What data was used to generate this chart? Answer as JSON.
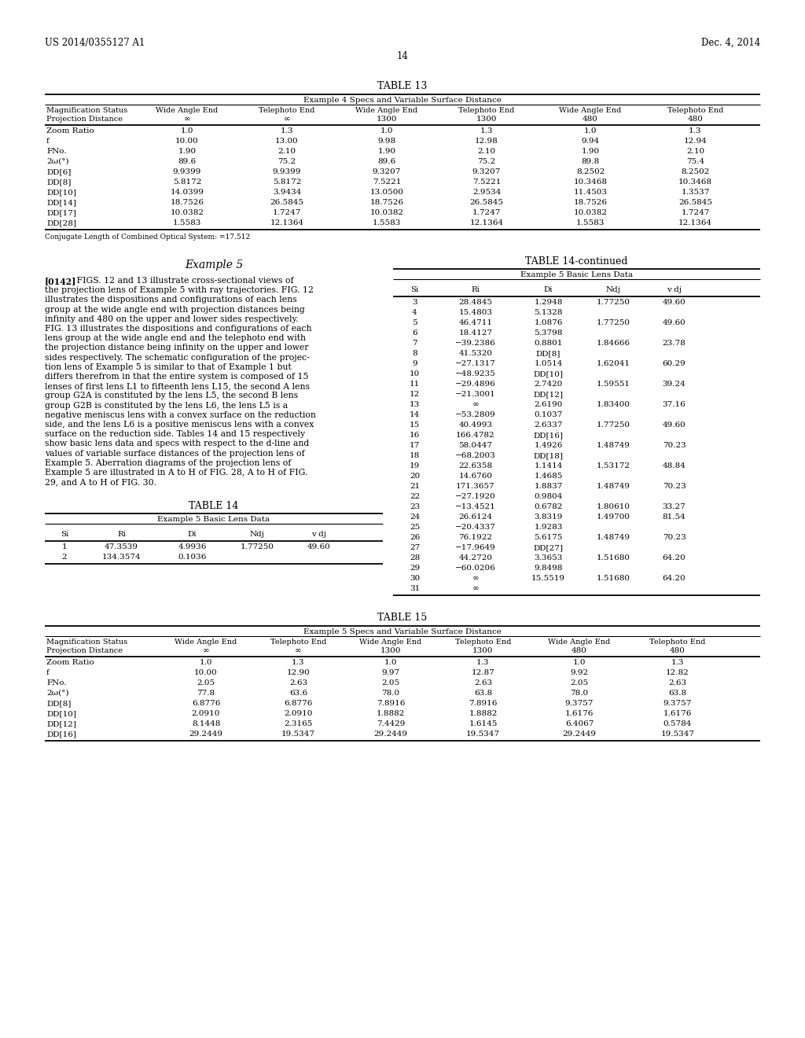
{
  "header_left": "US 2014/0355127 A1",
  "header_right": "Dec. 4, 2014",
  "page_number": "14",
  "table13_title": "TABLE 13",
  "table13_subtitle": "Example 4 Specs and Variable Surface Distance",
  "table13_col_headers_row1": [
    "Magnification Status",
    "Wide Angle End",
    "Telephoto End",
    "Wide Angle End",
    "Telephoto End",
    "Wide Angle End",
    "Telephoto End"
  ],
  "table13_col_headers_row2": [
    "Projection Distance",
    "∞",
    "∞",
    "1300",
    "1300",
    "480",
    "480"
  ],
  "table13_rows": [
    [
      "Zoom Ratio",
      "1.0",
      "1.3",
      "1.0",
      "1.3",
      "1.0",
      "1.3"
    ],
    [
      "f",
      "10.00",
      "13.00",
      "9.98",
      "12.98",
      "9.94",
      "12.94"
    ],
    [
      "FNo.",
      "1.90",
      "2.10",
      "1.90",
      "2.10",
      "1.90",
      "2.10"
    ],
    [
      "2ω(°)",
      "89.6",
      "75.2",
      "89.6",
      "75.2",
      "89.8",
      "75.4"
    ],
    [
      "DD[6]",
      "9.9399",
      "9.9399",
      "9.3207",
      "9.3207",
      "8.2502",
      "8.2502"
    ],
    [
      "DD[8]",
      "5.8172",
      "5.8172",
      "7.5221",
      "7.5221",
      "10.3468",
      "10.3468"
    ],
    [
      "DD[10]",
      "14.0399",
      "3.9434",
      "13.0500",
      "2.9534",
      "11.4503",
      "1.3537"
    ],
    [
      "DD[14]",
      "18.7526",
      "26.5845",
      "18.7526",
      "26.5845",
      "18.7526",
      "26.5845"
    ],
    [
      "DD[17]",
      "10.0382",
      "1.7247",
      "10.0382",
      "1.7247",
      "10.0382",
      "1.7247"
    ],
    [
      "DD[28]",
      "1.5583",
      "12.1364",
      "1.5583",
      "12.1364",
      "1.5583",
      "12.1364"
    ]
  ],
  "table13_footnote": "Conjugate Length of Combined Optical System: =17.512",
  "example5_title": "Example 5",
  "example5_para": "[0142]   FIGS. 12 and 13 illustrate cross-sectional views of the projection lens of Example 5 with ray trajectories. FIG. 12 illustrates the dispositions and configurations of each lens group at the wide angle end with projection distances being infinity and 480 on the upper and lower sides respectively. FIG. 13 illustrates the dispositions and configurations of each lens group at the wide angle end and the telephoto end with the projection distance being infinity on the upper and lower sides respectively. The schematic configuration of the projection lens of Example 5 is similar to that of Example 1 but differs therefrom in that the entire system is composed of 15 lenses of first lens L1 to fifteenth lens L15, the second A lens group G2A is constituted by the lens L5, the second B lens group G2B is constituted by the lens L6, the lens L5 is a negative meniscus lens with a convex surface on the reduction side, and the lens L6 is a positive meniscus lens with a convex surface on the reduction side. Tables 14 and 15 respectively show basic lens data and specs with respect to the d-line and values of variable surface distances of the projection lens of Example 5. Aberration diagrams of the projection lens of Example 5 are illustrated in A to H of FIG. 28, A to H of FIG. 29, and A to H of FIG. 30.",
  "bold_refs": [
    "12",
    "13",
    "12",
    "13",
    "28",
    "29",
    "30"
  ],
  "table14_title": "TABLE 14",
  "table14_subtitle": "Example 5 Basic Lens Data",
  "table14_col_headers": [
    "Si",
    "Ri",
    "Di",
    "Ndj",
    "v dj"
  ],
  "table14_rows": [
    [
      "1",
      "47.3539",
      "4.9936",
      "1.77250",
      "49.60"
    ],
    [
      "2",
      "134.3574",
      "0.1036",
      "",
      ""
    ]
  ],
  "table14cont_title": "TABLE 14-continued",
  "table14cont_subtitle": "Example 5 Basic Lens Data",
  "table14cont_col_headers": [
    "Si",
    "Ri",
    "Di",
    "Ndj",
    "v dj"
  ],
  "table14cont_rows": [
    [
      "3",
      "28.4845",
      "1.2948",
      "1.77250",
      "49.60"
    ],
    [
      "4",
      "15.4803",
      "5.1328",
      "",
      ""
    ],
    [
      "5",
      "46.4711",
      "1.0876",
      "1.77250",
      "49.60"
    ],
    [
      "6",
      "18.4127",
      "5.3798",
      "",
      ""
    ],
    [
      "7",
      "−39.2386",
      "0.8801",
      "1.84666",
      "23.78"
    ],
    [
      "8",
      "41.5320",
      "DD[8]",
      "",
      ""
    ],
    [
      "9",
      "−27.1317",
      "1.0514",
      "1.62041",
      "60.29"
    ],
    [
      "10",
      "−48.9235",
      "DD[10]",
      "",
      ""
    ],
    [
      "11",
      "−29.4896",
      "2.7420",
      "1.59551",
      "39.24"
    ],
    [
      "12",
      "−21.3001",
      "DD[12]",
      "",
      ""
    ],
    [
      "13",
      "∞",
      "2.6190",
      "1.83400",
      "37.16"
    ],
    [
      "14",
      "−53.2809",
      "0.1037",
      "",
      ""
    ],
    [
      "15",
      "40.4993",
      "2.6337",
      "1.77250",
      "49.60"
    ],
    [
      "16",
      "166.4782",
      "DD[16]",
      "",
      ""
    ],
    [
      "17",
      "58.0447",
      "1.4926",
      "1.48749",
      "70.23"
    ],
    [
      "18",
      "−68.2003",
      "DD[18]",
      "",
      ""
    ],
    [
      "19",
      "22.6358",
      "1.1414",
      "1.53172",
      "48.84"
    ],
    [
      "20",
      "14.6760",
      "1.4685",
      "",
      ""
    ],
    [
      "21",
      "171.3657",
      "1.8837",
      "1.48749",
      "70.23"
    ],
    [
      "22",
      "−27.1920",
      "0.9804",
      "",
      ""
    ],
    [
      "23",
      "−13.4521",
      "0.6782",
      "1.80610",
      "33.27"
    ],
    [
      "24",
      "26.6124",
      "3.8319",
      "1.49700",
      "81.54"
    ],
    [
      "25",
      "−20.4337",
      "1.9283",
      "",
      ""
    ],
    [
      "26",
      "76.1922",
      "5.6175",
      "1.48749",
      "70.23"
    ],
    [
      "27",
      "−17.9649",
      "DD[27]",
      "",
      ""
    ],
    [
      "28",
      "44.2720",
      "3.3653",
      "1.51680",
      "64.20"
    ],
    [
      "29",
      "−60.0206",
      "9.8498",
      "",
      ""
    ],
    [
      "30",
      "∞",
      "15.5519",
      "1.51680",
      "64.20"
    ],
    [
      "31",
      "∞",
      "",
      "",
      ""
    ]
  ],
  "table15_title": "TABLE 15",
  "table15_subtitle": "Example 5 Specs and Variable Surface Distance",
  "table15_col_headers_row1": [
    "Magnification Status",
    "Wide Angle End",
    "Telephoto End",
    "Wide Angle End",
    "Telephoto End",
    "Wide Angle End",
    "Telephoto End"
  ],
  "table15_col_headers_row2": [
    "Projection Distance",
    "∞",
    "∞",
    "1300",
    "1300",
    "480",
    "480"
  ],
  "table15_rows": [
    [
      "Zoom Ratio",
      "1.0",
      "1.3",
      "1.0",
      "1.3",
      "1.0",
      "1.3"
    ],
    [
      "f",
      "10.00",
      "12.90",
      "9.97",
      "12.87",
      "9.92",
      "12.82"
    ],
    [
      "FNo.",
      "2.05",
      "2.63",
      "2.05",
      "2.63",
      "2.05",
      "2.63"
    ],
    [
      "2ω(°)",
      "77.8",
      "63.6",
      "78.0",
      "63.8",
      "78.0",
      "63.8"
    ],
    [
      "DD[8]",
      "6.8776",
      "6.8776",
      "7.8916",
      "7.8916",
      "9.3757",
      "9.3757"
    ],
    [
      "DD[10]",
      "2.0910",
      "2.0910",
      "1.8882",
      "1.8882",
      "1.6176",
      "1.6176"
    ],
    [
      "DD[12]",
      "8.1448",
      "2.3165",
      "7.4429",
      "1.6145",
      "6.4067",
      "0.5784"
    ],
    [
      "DD[16]",
      "29.2449",
      "19.5347",
      "29.2449",
      "19.5347",
      "29.2449",
      "19.5347"
    ]
  ]
}
